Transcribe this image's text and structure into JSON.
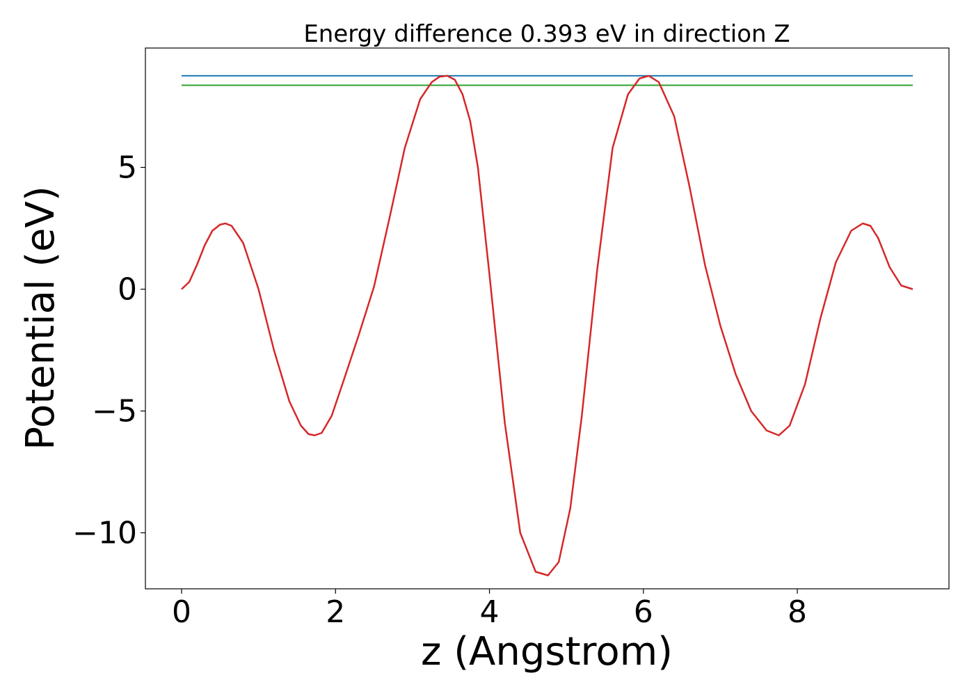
{
  "chart_data": {
    "type": "line",
    "title": "Energy difference 0.393 eV in direction Z",
    "xlabel": "z (Angstrom)",
    "ylabel": "Potential (eV)",
    "xlim": [
      -0.47,
      9.97
    ],
    "ylim": [
      -12.3,
      9.9
    ],
    "xticks": [
      0,
      2,
      4,
      6,
      8
    ],
    "xtick_labels": [
      "0",
      "2",
      "4",
      "6",
      "8"
    ],
    "yticks": [
      -10,
      -5,
      0,
      5
    ],
    "ytick_labels": [
      "−10",
      "−5",
      "0",
      "5"
    ],
    "grid": false,
    "legend": "none",
    "series": [
      {
        "color": "#d62728",
        "x": [
          0,
          0.1,
          0.2,
          0.3,
          0.4,
          0.5,
          0.57,
          0.65,
          0.8,
          1.0,
          1.2,
          1.4,
          1.55,
          1.65,
          1.73,
          1.82,
          1.95,
          2.1,
          2.3,
          2.5,
          2.7,
          2.9,
          3.1,
          3.25,
          3.35,
          3.45,
          3.55,
          3.65,
          3.75,
          3.85,
          4.0,
          4.2,
          4.4,
          4.6,
          4.76,
          4.9,
          5.05,
          5.2,
          5.4,
          5.6,
          5.8,
          5.95,
          6.07,
          6.2,
          6.4,
          6.6,
          6.8,
          7.0,
          7.2,
          7.4,
          7.6,
          7.76,
          7.9,
          8.1,
          8.3,
          8.5,
          8.7,
          8.85,
          8.95,
          9.05,
          9.2,
          9.35,
          9.5
        ],
        "y": [
          0.0,
          0.3,
          1.0,
          1.8,
          2.4,
          2.65,
          2.7,
          2.6,
          1.9,
          0.0,
          -2.5,
          -4.6,
          -5.6,
          -5.95,
          -6.0,
          -5.9,
          -5.2,
          -3.8,
          -1.9,
          0.1,
          2.9,
          5.8,
          7.8,
          8.5,
          8.72,
          8.76,
          8.6,
          8.0,
          6.9,
          5.0,
          0.6,
          -5.5,
          -10.0,
          -11.6,
          -11.75,
          -11.2,
          -9.0,
          -5.2,
          0.8,
          5.8,
          8.0,
          8.65,
          8.76,
          8.5,
          7.1,
          4.2,
          1.0,
          -1.5,
          -3.5,
          -5.0,
          -5.8,
          -6.0,
          -5.6,
          -3.9,
          -1.2,
          1.1,
          2.4,
          2.7,
          2.6,
          2.1,
          0.9,
          0.15,
          0.0
        ]
      },
      {
        "color": "#1f77b4",
        "x": [
          0,
          9.5
        ],
        "y": [
          8.76,
          8.76
        ]
      },
      {
        "color": "#2ca02c",
        "x": [
          0,
          9.5
        ],
        "y": [
          8.37,
          8.37
        ]
      }
    ]
  }
}
